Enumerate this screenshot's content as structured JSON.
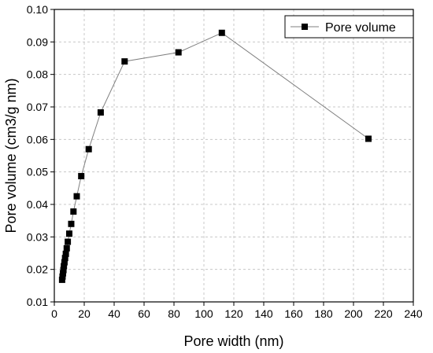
{
  "chart_data": {
    "type": "line",
    "xlabel": "Pore width (nm)",
    "ylabel": "Pore volume (cm3/g nm)",
    "xlim": [
      0,
      240
    ],
    "ylim": [
      0.01,
      0.1
    ],
    "x_ticks": [
      0,
      20,
      40,
      60,
      80,
      100,
      120,
      140,
      160,
      180,
      200,
      220,
      240
    ],
    "y_ticks": [
      "0.01",
      "0.02",
      "0.03",
      "0.04",
      "0.05",
      "0.06",
      "0.07",
      "0.08",
      "0.09",
      "0.10"
    ],
    "grid": true,
    "legend_position": "top-right",
    "series": [
      {
        "name": "Pore volume",
        "marker": "square",
        "color": "#000000",
        "line_color": "#7f7f7f",
        "x": [
          5.2,
          5.5,
          5.8,
          6.1,
          6.4,
          6.8,
          7.2,
          7.7,
          8.3,
          9.0,
          10.0,
          11.3,
          12.8,
          15.0,
          18.0,
          23.0,
          31.0,
          47.0,
          83.0,
          112.0,
          210.0
        ],
        "y": [
          0.0168,
          0.0178,
          0.0188,
          0.0198,
          0.021,
          0.0222,
          0.0235,
          0.0248,
          0.0265,
          0.0285,
          0.031,
          0.034,
          0.0378,
          0.0425,
          0.0487,
          0.057,
          0.0683,
          0.084,
          0.0868,
          0.0928,
          0.0602
        ]
      }
    ]
  }
}
